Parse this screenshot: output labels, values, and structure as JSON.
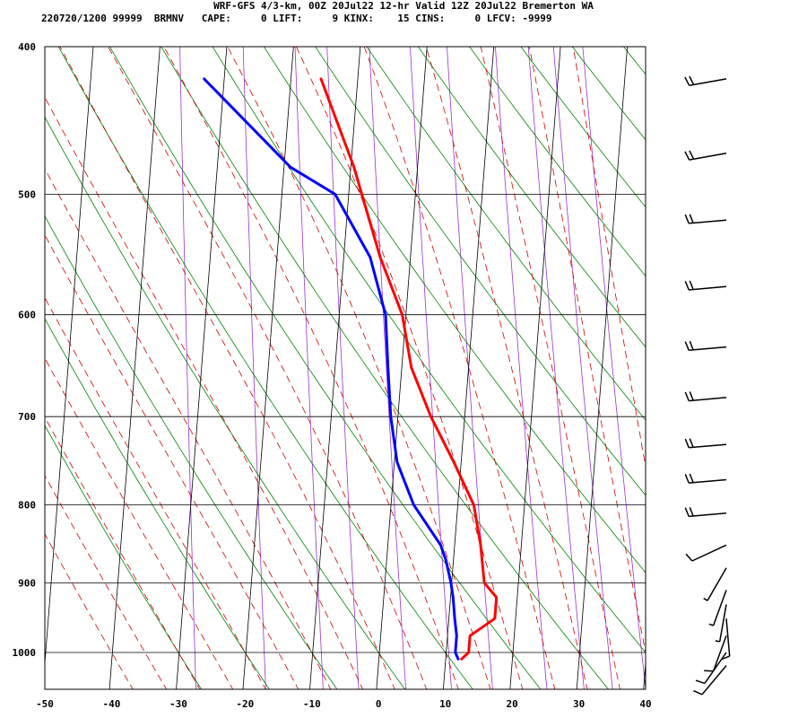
{
  "title": "WRF-GFS 4/3-km, 00Z 20Jul22 12-hr Valid 12Z 20Jul22 Bremerton WA",
  "subtitle": "220720/1200 99999  BRMNV   CAPE:     0 LIFT:     9 KINX:    15 CINS:     0 LFCV: -9999",
  "colors": {
    "temperature": "#ff0000",
    "dewpoint": "#0000ff",
    "dry_adiabat": "#008000",
    "moist_adiabat": "#cc0000",
    "mixing_ratio": "#9933cc",
    "grid": "#000000",
    "wind": "#000000"
  },
  "chart_data": {
    "type": "line",
    "chart_kind": "skew-t log-p sounding",
    "xlabel": "",
    "ylabel": "",
    "xlim": [
      -50,
      40
    ],
    "ylim": [
      1040,
      400
    ],
    "x_ticks": [
      "-50",
      "-40",
      "-30",
      "-20",
      "-10",
      "0",
      "10",
      "20",
      "30",
      "40"
    ],
    "x_tick_values": [
      -50,
      -40,
      -30,
      -20,
      -10,
      0,
      10,
      20,
      30,
      40
    ],
    "y_ticks": [
      "400",
      "500",
      "600",
      "700",
      "800",
      "900",
      "1000"
    ],
    "y_tick_values": [
      400,
      500,
      600,
      700,
      800,
      900,
      1000
    ],
    "grid": true,
    "series": [
      {
        "name": "Temperature",
        "pressure": [
          1010,
          1000,
          985,
          975,
          950,
          920,
          900,
          850,
          800,
          750,
          700,
          650,
          600,
          550,
          500,
          480,
          420
        ],
        "values": [
          12.5,
          13.5,
          13.5,
          13.5,
          17.0,
          17.0,
          15.0,
          14.0,
          12.5,
          9.0,
          5.0,
          1.5,
          -0.5,
          -4.5,
          -8.0,
          -9.5,
          -15.5
        ]
      },
      {
        "name": "Dewpoint",
        "pressure": [
          1010,
          1000,
          975,
          950,
          920,
          900,
          870,
          850,
          800,
          750,
          700,
          650,
          600,
          550,
          500,
          480,
          420
        ],
        "values": [
          12.0,
          11.5,
          11.5,
          11.0,
          10.5,
          10.0,
          9.0,
          8.0,
          3.5,
          0.5,
          -1.0,
          -2.0,
          -3.0,
          -6.0,
          -12.0,
          -19.0,
          -33.0
        ]
      }
    ],
    "winds": [
      {
        "pressure": 420,
        "barb": "22 kt"
      },
      {
        "pressure": 470,
        "barb": "22 kt"
      },
      {
        "pressure": 520,
        "barb": "20 kt"
      },
      {
        "pressure": 575,
        "barb": "22 kt"
      },
      {
        "pressure": 630,
        "barb": "22 kt"
      },
      {
        "pressure": 680,
        "barb": "20 kt"
      },
      {
        "pressure": 730,
        "barb": "20 kt"
      },
      {
        "pressure": 770,
        "barb": "20 kt"
      },
      {
        "pressure": 810,
        "barb": "20 kt"
      },
      {
        "pressure": 850,
        "barb": "10 kt"
      },
      {
        "pressure": 880,
        "barb": "5 kt"
      },
      {
        "pressure": 910,
        "barb": "5 kt"
      },
      {
        "pressure": 930,
        "barb": "5 kt"
      },
      {
        "pressure": 950,
        "barb": "10 kt"
      },
      {
        "pressure": 975,
        "barb": "10 kt"
      },
      {
        "pressure": 1000,
        "barb": "10 kt"
      },
      {
        "pressure": 1020,
        "barb": "10 kt"
      }
    ]
  }
}
